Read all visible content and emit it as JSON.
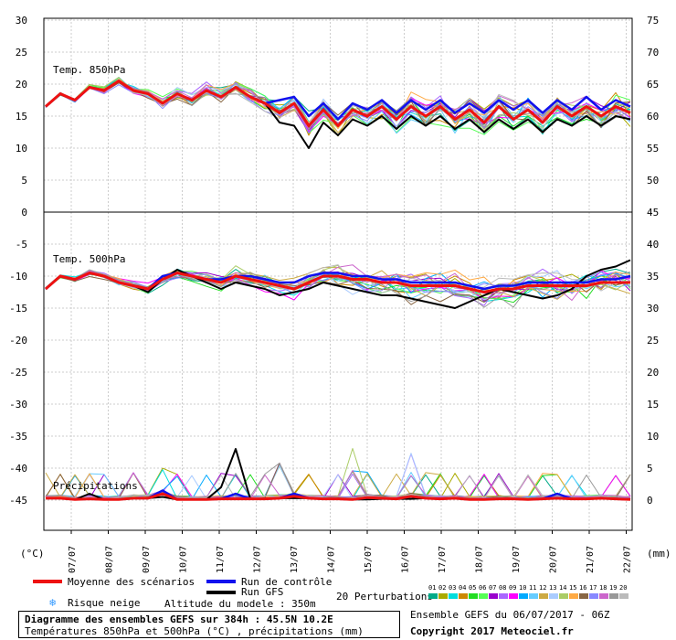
{
  "chart_data": {
    "type": "line",
    "title": "Diagramme des ensembles GEFS sur 384h : 45.5N 10.2E",
    "subtitle": "Températures 850hPa et 500hPa (°C) , précipitations (mm)",
    "left_unit": "(°C)",
    "right_unit": "(mm)",
    "x_dates": [
      "07/07",
      "08/07",
      "09/07",
      "10/07",
      "11/07",
      "12/07",
      "13/07",
      "14/07",
      "15/07",
      "16/07",
      "17/07",
      "18/07",
      "19/07",
      "20/07",
      "21/07",
      "22/07"
    ],
    "left_ticks": [
      "30",
      "25",
      "20",
      "15",
      "10",
      "5",
      "0",
      "-5",
      "-10",
      "-15",
      "-20",
      "-25",
      "-30",
      "-35",
      "-40",
      "-45"
    ],
    "right_ticks_top": [
      "75",
      "70",
      "65",
      "60",
      "55",
      "50"
    ],
    "right_ticks_bottom": [
      "45",
      "40",
      "35",
      "30",
      "25",
      "20",
      "15",
      "10",
      "5",
      "0"
    ],
    "panels": {
      "t850": {
        "label": "Temp. 850hPa",
        "mean": [
          16.5,
          18.5,
          17.5,
          19.5,
          19,
          20.5,
          19,
          18.5,
          17,
          18.5,
          17.5,
          19,
          18,
          19.5,
          18,
          17,
          15.5,
          17,
          13.5,
          16,
          13.5,
          16,
          15,
          16.5,
          14.5,
          16.5,
          15,
          16.5,
          14.5,
          16,
          14,
          16.5,
          14.5,
          16,
          14,
          16.5,
          15,
          16.5,
          15,
          16.5,
          15.5
        ],
        "control": [
          16.5,
          18.5,
          17.5,
          19.5,
          19,
          20.5,
          19,
          18.5,
          17,
          18.5,
          17.5,
          19,
          18,
          19.5,
          18,
          17,
          17.5,
          18,
          15,
          17,
          14.5,
          17,
          16,
          17.5,
          15.5,
          17.5,
          16,
          17.5,
          15.5,
          17,
          15.5,
          17.5,
          16,
          17.5,
          15.5,
          17.5,
          16,
          18,
          16,
          17.5,
          16.5
        ],
        "gfs": [
          16.5,
          18.5,
          17.5,
          19.5,
          19,
          20.5,
          19,
          18.5,
          17,
          18.5,
          17.5,
          19,
          18,
          19.5,
          18,
          17,
          14,
          13.5,
          10,
          14,
          12,
          14.5,
          13.5,
          15,
          13,
          15,
          13.5,
          15,
          13,
          14.5,
          12.5,
          14.5,
          13,
          14.5,
          12.5,
          14.5,
          13.5,
          15,
          13.5,
          15,
          14.5
        ]
      },
      "t500": {
        "label": "Temp. 500hPa",
        "mean": [
          -12,
          -10,
          -10.5,
          -9.5,
          -10,
          -11,
          -11.5,
          -12,
          -10.5,
          -9.5,
          -10,
          -10.5,
          -11,
          -10,
          -10.5,
          -11,
          -11.5,
          -12,
          -11,
          -10,
          -10,
          -10.5,
          -10.5,
          -11,
          -11,
          -11.5,
          -11.5,
          -11.5,
          -11.5,
          -12,
          -12.5,
          -12,
          -12,
          -11.5,
          -11.5,
          -11.5,
          -11.5,
          -11.5,
          -11,
          -11,
          -11
        ],
        "control": [
          -12,
          -10,
          -10.5,
          -9.5,
          -10,
          -11,
          -11.5,
          -12,
          -10,
          -9.5,
          -10,
          -10.5,
          -10.5,
          -10,
          -10,
          -10.5,
          -11,
          -11,
          -10,
          -9.5,
          -9.5,
          -10,
          -10,
          -10.5,
          -10.5,
          -11,
          -11,
          -11,
          -11,
          -11.5,
          -12,
          -11.5,
          -11.5,
          -11,
          -11,
          -11,
          -11,
          -11,
          -10.5,
          -10.5,
          -10
        ],
        "gfs": [
          -12,
          -10,
          -10.5,
          -9.5,
          -10,
          -11,
          -11.5,
          -12.5,
          -10.5,
          -9,
          -10,
          -11,
          -12,
          -11,
          -11.5,
          -12,
          -13,
          -12.5,
          -12,
          -11,
          -11.5,
          -12,
          -12.5,
          -13,
          -13,
          -13.5,
          -14,
          -14.5,
          -15,
          -14,
          -13,
          -12,
          -12.5,
          -13,
          -13.5,
          -13,
          -12,
          -10,
          -9,
          -8.5,
          -7.5
        ]
      },
      "precip": {
        "label": "Précipitations",
        "mean": [
          0.3,
          0.3,
          0.1,
          0.2,
          0.1,
          0.1,
          0.3,
          0.3,
          1,
          0.1,
          0.1,
          0.1,
          0.2,
          0.2,
          0.2,
          0.2,
          0.3,
          0.6,
          0.3,
          0.2,
          0.2,
          0.1,
          0.4,
          0.3,
          0.2,
          0.6,
          0.3,
          0.2,
          0.3,
          0.1,
          0.1,
          0.2,
          0.2,
          0.1,
          0.2,
          0.3,
          0.2,
          0.2,
          0.3,
          0.2,
          0.1
        ],
        "control": [
          0.3,
          0.3,
          0.1,
          0.2,
          0.1,
          0.1,
          0.3,
          0.3,
          1.5,
          0.1,
          0.1,
          0.1,
          0.2,
          1,
          0.2,
          0.2,
          0.3,
          1,
          0.3,
          0.2,
          0.2,
          0.1,
          0.4,
          0.3,
          0.2,
          0.6,
          0.3,
          0.2,
          0.3,
          0.1,
          0.1,
          0.2,
          0.2,
          0.1,
          0.2,
          1,
          0.2,
          0.2,
          0.3,
          0.2,
          0.1
        ],
        "gfs": [
          0.3,
          0.3,
          0.1,
          1,
          0.1,
          0.1,
          0.3,
          0.3,
          0.5,
          0.1,
          0.1,
          0.1,
          2,
          8,
          0.2,
          0.2,
          0.3,
          0.3,
          0.3,
          0.2,
          0.2,
          0.1,
          0.1,
          0.2,
          0.2,
          0.2,
          0.3,
          0.2,
          0.3,
          0.1,
          0.1,
          0.2,
          0.2,
          0.1,
          0.2,
          0.3,
          0.2,
          0.2,
          0.3,
          0.2,
          0.1
        ]
      }
    },
    "colors": {
      "mean": "#ee1111",
      "control": "#1111ee",
      "gfs": "#000000",
      "perturbations": [
        "#00aa88",
        "#aaaa00",
        "#00dddd",
        "#cc8800",
        "#22dd22",
        "#55ff55",
        "#9900cc",
        "#aa66ff",
        "#ff00ff",
        "#00aaff",
        "#66ccff",
        "#ccaa44",
        "#aaccff",
        "#aacc66",
        "#ffaa44",
        "#886644",
        "#8888ff",
        "#cc66cc",
        "#999999",
        "#bbbbbb"
      ]
    }
  },
  "legend": {
    "mean_label": "Moyenne des scénarios",
    "control_label": "Run de contrôle",
    "gfs_label": "Run GFS",
    "snow_label": "Risque neige",
    "altitude_label": "Altitude du modele : 350m",
    "perturbations_label": "20 Perturbations",
    "perturbation_numbers": [
      "01",
      "02",
      "03",
      "04",
      "05",
      "06",
      "07",
      "08",
      "09",
      "10",
      "11",
      "12",
      "13",
      "14",
      "15",
      "16",
      "17",
      "18",
      "19",
      "20"
    ]
  },
  "info": {
    "title": "Diagramme des ensembles GEFS sur 384h : 45.5N 10.2E",
    "subtitle": "Températures 850hPa et 500hPa (°C) , précipitations (mm)",
    "ensemble": "Ensemble GEFS du 06/07/2017 - 06Z",
    "copyright": "Copyright 2017 Meteociel.fr"
  }
}
